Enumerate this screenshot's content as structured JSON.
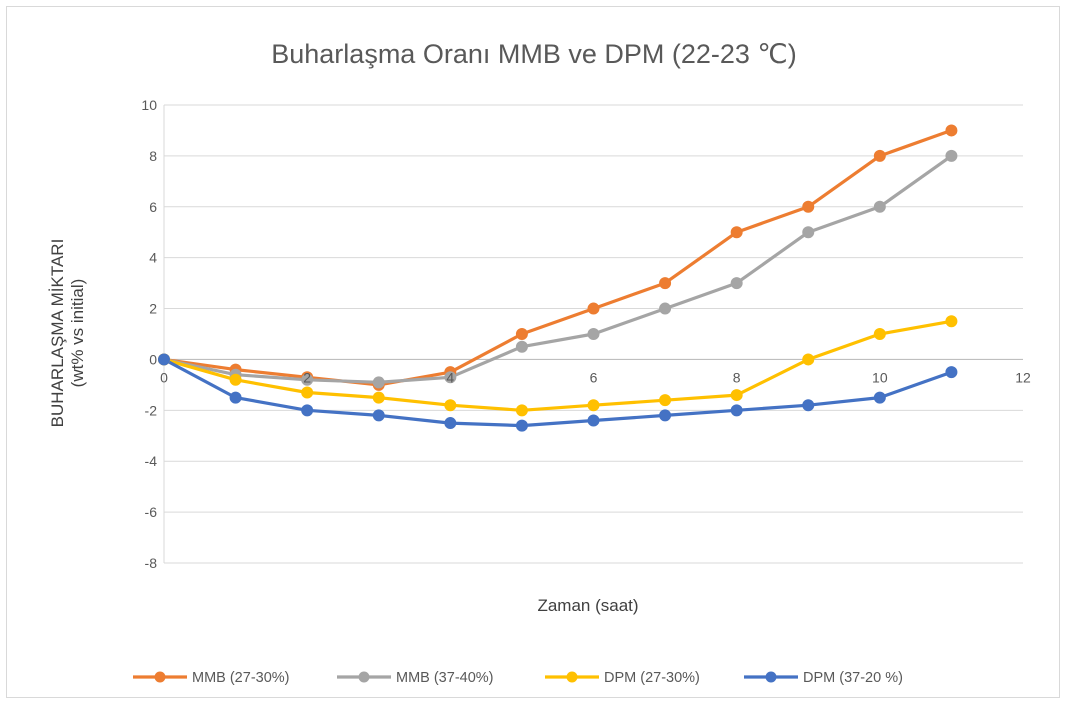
{
  "chart_data": {
    "type": "scatter",
    "mode": "lines+markers",
    "title": "Buharlaşma Oranı MMB ve DPM (22-23 ℃)",
    "xlabel": "Zaman (saat)",
    "ylabel": "BUHARLAŞMA MİKTARI",
    "ylabel_sub": "(wt% vs initial)",
    "xlim": [
      0,
      12
    ],
    "ylim": [
      -8,
      10
    ],
    "xticks": [
      0,
      2,
      4,
      6,
      8,
      10,
      12
    ],
    "yticks": [
      -8,
      -6,
      -4,
      -2,
      0,
      2,
      4,
      6,
      8,
      10
    ],
    "grid": "horizontal",
    "legend_position": "bottom",
    "series": [
      {
        "name": "MMB (27-30%)",
        "color": "#ED7D31",
        "x": [
          0,
          1,
          2,
          3,
          4,
          5,
          6,
          7,
          8,
          9,
          10,
          11
        ],
        "y": [
          0,
          -0.4,
          -0.7,
          -1.0,
          -0.5,
          1,
          2,
          3,
          5,
          6,
          8,
          9
        ]
      },
      {
        "name": "MMB (37-40%)",
        "color": "#A5A5A5",
        "x": [
          0,
          1,
          2,
          3,
          4,
          5,
          6,
          7,
          8,
          9,
          10,
          11
        ],
        "y": [
          0,
          -0.6,
          -0.8,
          -0.9,
          -0.7,
          0.5,
          1,
          2,
          3,
          5,
          6,
          8
        ]
      },
      {
        "name": "DPM (27-30%)",
        "color": "#FFC000",
        "x": [
          0,
          1,
          2,
          3,
          4,
          5,
          6,
          7,
          8,
          9,
          10,
          11
        ],
        "y": [
          0,
          -0.8,
          -1.3,
          -1.5,
          -1.8,
          -2.0,
          -1.8,
          -1.6,
          -1.4,
          0,
          1,
          1.5
        ]
      },
      {
        "name": "DPM  (37-20 %)",
        "color": "#4472C4",
        "x": [
          0,
          1,
          2,
          3,
          4,
          5,
          6,
          7,
          8,
          9,
          10,
          11
        ],
        "y": [
          0,
          -1.5,
          -2.0,
          -2.2,
          -2.5,
          -2.6,
          -2.4,
          -2.2,
          -2.0,
          -1.8,
          -1.5,
          -0.5
        ]
      }
    ]
  }
}
